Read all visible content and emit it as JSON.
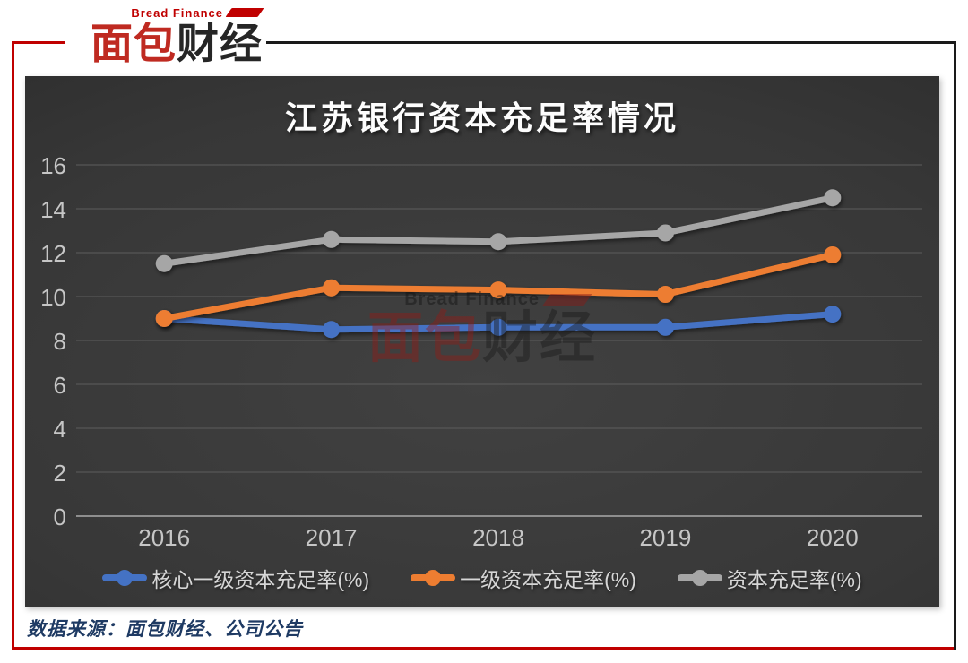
{
  "brand": {
    "subtitle": "Bread Finance",
    "name_red": "面包",
    "name_dark": "财经"
  },
  "watermark": {
    "subtitle": "Bread Finance",
    "name_red": "面包",
    "name_dark": "财经"
  },
  "footer": {
    "source": "数据来源：面包财经、公司公告"
  },
  "colors": {
    "frame_red": "#c00000",
    "frame_black": "#1a1a1a",
    "grid": "#5d5d5d",
    "axis_zero": "#9a9a9a",
    "tick_label": "#c6c6c6",
    "title_text": "#ffffff",
    "source_text": "#1e3a63"
  },
  "chart_data": {
    "type": "line",
    "title": "江苏银行资本充足率情况",
    "categories": [
      "2016",
      "2017",
      "2018",
      "2019",
      "2020"
    ],
    "series": [
      {
        "name": "核心一级资本充足率(%)",
        "color": "#4472c4",
        "values": [
          9.0,
          8.5,
          8.6,
          8.6,
          9.2
        ]
      },
      {
        "name": "一级资本充足率(%)",
        "color": "#ed7d31",
        "values": [
          9.0,
          10.4,
          10.3,
          10.1,
          11.9
        ]
      },
      {
        "name": "资本充足率(%)",
        "color": "#a6a6a6",
        "values": [
          11.5,
          12.6,
          12.5,
          12.9,
          14.5
        ]
      }
    ],
    "xlabel": "",
    "ylabel": "",
    "ylim": [
      0,
      16
    ],
    "yticks": [
      0,
      2,
      4,
      6,
      8,
      10,
      12,
      14,
      16
    ],
    "grid": true,
    "legend_position": "bottom"
  }
}
